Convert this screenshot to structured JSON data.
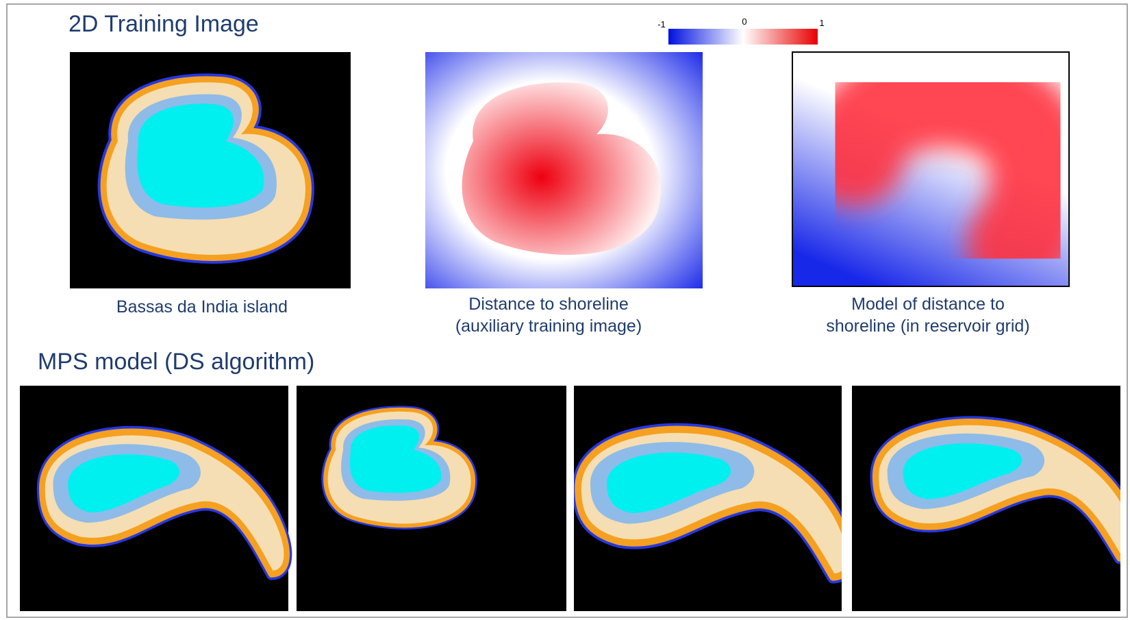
{
  "header": {
    "title": "2D Training Image"
  },
  "colorbar": {
    "ticks": [
      -1,
      0,
      1
    ]
  },
  "panels": [
    {
      "caption": [
        "Bassas da India island"
      ]
    },
    {
      "caption": [
        "Distance to shoreline",
        "(auxiliary training image)"
      ]
    },
    {
      "caption": [
        "Model of distance to",
        "shoreline (in reservoir grid)"
      ]
    }
  ],
  "section": {
    "title": "MPS model (DS algorithm)"
  }
}
